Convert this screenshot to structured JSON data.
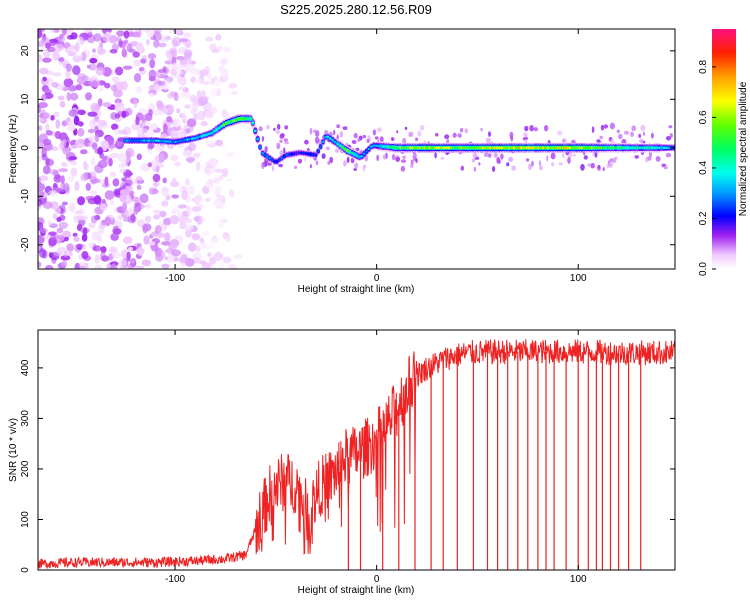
{
  "title": "S225.2025.280.12.56.R09",
  "chart_data": [
    {
      "type": "heatmap",
      "xlabel": "Height of straight line (km)",
      "ylabel": "Frequency (Hz)",
      "xlim": [
        -168,
        148
      ],
      "ylim": [
        -25,
        24.5
      ],
      "x_ticks": [
        -100,
        0,
        100
      ],
      "x_tick_labels": [
        "-100",
        "0",
        "100"
      ],
      "y_ticks": [
        -20,
        -10,
        0,
        10,
        20
      ],
      "y_tick_labels": [
        "-20",
        "-10",
        "0",
        "10",
        "20"
      ],
      "colorbar": {
        "label": "Normalized spectral amplitude",
        "range": [
          0.0,
          0.95
        ],
        "ticks": [
          0.0,
          0.2,
          0.4,
          0.6,
          0.8
        ],
        "tick_labels": [
          "0.0",
          "0.2",
          "0.4",
          "0.6",
          "0.8"
        ],
        "colors": [
          "#ffffff",
          "#e8d6ff",
          "#8a2be2",
          "#3a00ff",
          "#0000ff",
          "#00bfff",
          "#00ffcc",
          "#00ff00",
          "#aaff00",
          "#ffff00",
          "#ff9900",
          "#ff0000",
          "#ff1493"
        ]
      },
      "ridge": [
        {
          "x": -125,
          "y": 1.5,
          "a": 0.3
        },
        {
          "x": -110,
          "y": 1.5,
          "a": 0.35
        },
        {
          "x": -100,
          "y": 1.2,
          "a": 0.3
        },
        {
          "x": -90,
          "y": 2.0,
          "a": 0.35
        },
        {
          "x": -82,
          "y": 3.0,
          "a": 0.4
        },
        {
          "x": -75,
          "y": 5.0,
          "a": 0.55
        },
        {
          "x": -68,
          "y": 6.0,
          "a": 0.6
        },
        {
          "x": -62,
          "y": 6.0,
          "a": 0.45
        },
        {
          "x": -57,
          "y": -1.0,
          "a": 0.3
        },
        {
          "x": -50,
          "y": -3.0,
          "a": 0.25
        },
        {
          "x": -45,
          "y": -1.5,
          "a": 0.25
        },
        {
          "x": -38,
          "y": -1.0,
          "a": 0.2
        },
        {
          "x": -30,
          "y": -1.5,
          "a": 0.25
        },
        {
          "x": -25,
          "y": 2.5,
          "a": 0.35
        },
        {
          "x": -20,
          "y": 1.0,
          "a": 0.35
        },
        {
          "x": -15,
          "y": -0.5,
          "a": 0.55
        },
        {
          "x": -8,
          "y": -2.0,
          "a": 0.35
        },
        {
          "x": -2,
          "y": 0.5,
          "a": 0.3
        },
        {
          "x": 10,
          "y": 0.0,
          "a": 0.55
        },
        {
          "x": 25,
          "y": 0.0,
          "a": 0.65
        },
        {
          "x": 40,
          "y": 0.0,
          "a": 0.6
        },
        {
          "x": 55,
          "y": 0.0,
          "a": 0.65
        },
        {
          "x": 70,
          "y": 0.0,
          "a": 0.7
        },
        {
          "x": 85,
          "y": 0.0,
          "a": 0.65
        },
        {
          "x": 95,
          "y": 0.0,
          "a": 0.7
        },
        {
          "x": 110,
          "y": 0.0,
          "a": 0.55
        },
        {
          "x": 125,
          "y": 0.0,
          "a": 0.45
        },
        {
          "x": 140,
          "y": 0.0,
          "a": 0.4
        },
        {
          "x": 148,
          "y": 0.0,
          "a": 0.3
        }
      ],
      "noise_region_x": [
        -168,
        -68
      ]
    },
    {
      "type": "line",
      "xlabel": "Height of straight line (km)",
      "ylabel": "SNR (10 * v/v)",
      "xlim": [
        -168,
        148
      ],
      "ylim": [
        0,
        475
      ],
      "x_ticks": [
        -100,
        0,
        100
      ],
      "x_tick_labels": [
        "-100",
        "0",
        "100"
      ],
      "y_ticks": [
        0,
        100,
        200,
        300,
        400
      ],
      "y_tick_labels": [
        "0",
        "100",
        "200",
        "300",
        "400"
      ],
      "series": [
        {
          "color": "#ee2222",
          "x": [
            -168,
            -150,
            -130,
            -110,
            -90,
            -75,
            -65,
            -58,
            -52,
            -46,
            -40,
            -34,
            -28,
            -22,
            -16,
            -10,
            -4,
            0,
            5,
            10,
            15,
            20,
            25,
            30,
            35,
            45,
            60,
            80,
            100,
            120,
            140,
            148
          ],
          "y": [
            12,
            15,
            15,
            15,
            18,
            22,
            30,
            100,
            160,
            175,
            170,
            110,
            165,
            185,
            220,
            230,
            245,
            260,
            285,
            320,
            360,
            385,
            400,
            410,
            420,
            430,
            432,
            432,
            432,
            430,
            430,
            430
          ]
        }
      ],
      "dropouts": [
        -14,
        -8,
        3,
        11,
        19,
        27,
        33,
        40,
        48,
        55,
        60,
        65,
        70,
        75,
        80,
        84,
        88,
        94,
        100,
        105,
        109,
        112,
        116,
        120,
        125,
        131
      ]
    }
  ]
}
